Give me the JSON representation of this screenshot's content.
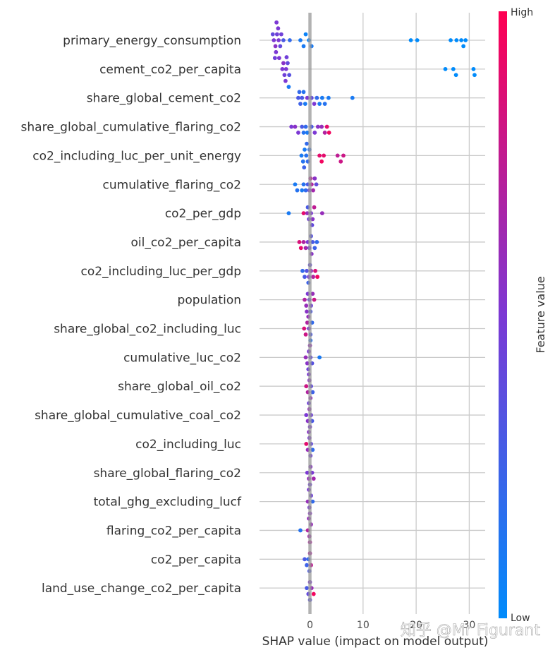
{
  "chart_data": {
    "type": "scatter",
    "subtype": "shap-beeswarm",
    "title": "",
    "xlabel": "SHAP value (impact on model output)",
    "ylabel": "",
    "xlim": [
      -9.5,
      33
    ],
    "xticks": [
      0,
      10,
      20,
      30
    ],
    "grid": true,
    "colorbar": {
      "title": "Feature value",
      "high_label": "High",
      "low_label": "Low",
      "low_color": "#008bfb",
      "mid_color": "#7c38d4",
      "high_color": "#ff0052"
    },
    "features": [
      {
        "name": "primary_energy_consumption",
        "points": [
          [
            -6.8,
            0.5
          ],
          [
            -6.5,
            0.55
          ],
          [
            -6.2,
            0.45
          ],
          [
            -5.9,
            0.5
          ],
          [
            -7.0,
            0.4
          ],
          [
            -6.4,
            0.5
          ],
          [
            -5.6,
            0.4
          ],
          [
            -6.0,
            0.5
          ],
          [
            -6.6,
            0.45
          ],
          [
            -5.8,
            0.5
          ],
          [
            -5.4,
            0.45
          ],
          [
            -6.3,
            0.5
          ],
          [
            -5.0,
            0.3
          ],
          [
            -3.8,
            0.2
          ],
          [
            -1.8,
            0.1
          ],
          [
            -1.2,
            0.1
          ],
          [
            -0.2,
            0.05
          ],
          [
            -0.8,
            0.05
          ],
          [
            0.3,
            0.1
          ],
          [
            19.0,
            0.0
          ],
          [
            20.2,
            0.0
          ],
          [
            26.5,
            0.0
          ],
          [
            27.6,
            0.0
          ],
          [
            28.5,
            0.0
          ],
          [
            28.9,
            0.0
          ],
          [
            29.3,
            0.0
          ]
        ]
      },
      {
        "name": "cement_co2_per_capita",
        "points": [
          [
            -5.2,
            0.5
          ],
          [
            -4.8,
            0.45
          ],
          [
            -4.5,
            0.5
          ],
          [
            -4.2,
            0.4
          ],
          [
            -5.0,
            0.55
          ],
          [
            -4.6,
            0.5
          ],
          [
            -3.9,
            0.35
          ],
          [
            -4.4,
            0.45
          ],
          [
            -4.0,
            0.1
          ],
          [
            25.5,
            0.0
          ],
          [
            27.0,
            0.0
          ],
          [
            27.5,
            0.0
          ],
          [
            30.8,
            0.0
          ],
          [
            31.0,
            0.0
          ]
        ]
      },
      {
        "name": "share_global_cement_co2",
        "points": [
          [
            -2.2,
            0.3
          ],
          [
            -1.8,
            0.25
          ],
          [
            -1.5,
            0.3
          ],
          [
            -2.0,
            0.2
          ],
          [
            -1.2,
            0.15
          ],
          [
            -0.9,
            0.1
          ],
          [
            -0.5,
            0.5
          ],
          [
            0.3,
            0.4
          ],
          [
            0.8,
            0.5
          ],
          [
            1.3,
            0.2
          ],
          [
            1.8,
            0.1
          ],
          [
            2.3,
            0.1
          ],
          [
            2.8,
            0.15
          ],
          [
            3.5,
            0.1
          ],
          [
            8.0,
            0.1
          ]
        ]
      },
      {
        "name": "share_global_cumulative_flaring_co2",
        "points": [
          [
            -3.5,
            0.5
          ],
          [
            -2.8,
            0.55
          ],
          [
            -2.2,
            0.5
          ],
          [
            -1.5,
            0.3
          ],
          [
            -0.8,
            0.2
          ],
          [
            -1.2,
            0.15
          ],
          [
            0.3,
            0.3
          ],
          [
            0.9,
            0.5
          ],
          [
            1.5,
            0.55
          ],
          [
            2.2,
            0.6
          ],
          [
            2.8,
            0.7
          ],
          [
            3.2,
            0.9
          ],
          [
            3.6,
            0.95
          ],
          [
            -0.5,
            0.1
          ]
        ]
      },
      {
        "name": "co2_including_luc_per_unit_energy",
        "points": [
          [
            -1.6,
            0.1
          ],
          [
            -1.3,
            0.15
          ],
          [
            -1.0,
            0.1
          ],
          [
            -0.7,
            0.15
          ],
          [
            -0.4,
            0.2
          ],
          [
            -0.1,
            0.15
          ],
          [
            -1.1,
            0.25
          ],
          [
            -0.6,
            0.2
          ],
          [
            1.8,
            0.9
          ],
          [
            2.2,
            0.95
          ],
          [
            2.6,
            0.9
          ],
          [
            5.2,
            0.75
          ],
          [
            5.8,
            0.8
          ],
          [
            6.3,
            0.8
          ]
        ]
      },
      {
        "name": "cumulative_flaring_co2",
        "points": [
          [
            -2.8,
            0.1
          ],
          [
            -2.4,
            0.15
          ],
          [
            -1.2,
            0.15
          ],
          [
            -0.8,
            0.2
          ],
          [
            -0.4,
            0.3
          ],
          [
            -0.1,
            0.45
          ],
          [
            0.3,
            0.7
          ],
          [
            0.6,
            0.65
          ],
          [
            0.9,
            0.55
          ],
          [
            1.2,
            0.4
          ],
          [
            0.1,
            0.75
          ],
          [
            -1.5,
            0.1
          ]
        ]
      },
      {
        "name": "co2_per_gdp",
        "points": [
          [
            -4.0,
            0.1
          ],
          [
            -1.2,
            0.9
          ],
          [
            -0.5,
            0.6
          ],
          [
            -0.2,
            0.45
          ],
          [
            0.2,
            0.5
          ],
          [
            0.5,
            0.55
          ],
          [
            0.8,
            0.75
          ],
          [
            0.4,
            0.4
          ],
          [
            2.3,
            0.6
          ],
          [
            -0.4,
            0.3
          ]
        ]
      },
      {
        "name": "oil_co2_per_capita",
        "points": [
          [
            -2.0,
            0.85
          ],
          [
            -1.7,
            0.9
          ],
          [
            -1.2,
            0.7
          ],
          [
            -0.8,
            0.65
          ],
          [
            -0.4,
            0.5
          ],
          [
            -0.1,
            0.45
          ],
          [
            0.2,
            0.35
          ],
          [
            0.5,
            0.3
          ],
          [
            0.9,
            0.25
          ],
          [
            1.3,
            0.2
          ],
          [
            0.3,
            0.55
          ]
        ]
      },
      {
        "name": "co2_including_luc_per_gdp",
        "points": [
          [
            -1.4,
            0.2
          ],
          [
            -1.0,
            0.3
          ],
          [
            -0.6,
            0.35
          ],
          [
            -0.2,
            0.5
          ],
          [
            0.2,
            0.6
          ],
          [
            0.6,
            0.7
          ],
          [
            1.0,
            0.85
          ],
          [
            1.4,
            0.95
          ],
          [
            0.0,
            0.4
          ],
          [
            -0.3,
            0.25
          ]
        ]
      },
      {
        "name": "population",
        "points": [
          [
            -1.0,
            0.7
          ],
          [
            -0.7,
            0.6
          ],
          [
            -0.4,
            0.5
          ],
          [
            -0.1,
            0.4
          ],
          [
            0.2,
            0.45
          ],
          [
            0.5,
            0.6
          ],
          [
            0.8,
            0.8
          ],
          [
            0.1,
            0.3
          ],
          [
            -0.6,
            0.55
          ]
        ]
      },
      {
        "name": "share_global_co2_including_luc",
        "points": [
          [
            -1.1,
            0.85
          ],
          [
            -0.8,
            0.8
          ],
          [
            -0.5,
            0.7
          ],
          [
            -0.2,
            0.5
          ],
          [
            0.1,
            0.3
          ],
          [
            0.4,
            0.2
          ],
          [
            0.1,
            0.15
          ],
          [
            -0.3,
            0.6
          ]
        ]
      },
      {
        "name": "cumulative_luc_co2",
        "points": [
          [
            -0.8,
            0.6
          ],
          [
            -0.5,
            0.55
          ],
          [
            -0.2,
            0.5
          ],
          [
            0.1,
            0.4
          ],
          [
            0.4,
            0.35
          ],
          [
            1.8,
            0.1
          ],
          [
            -0.3,
            0.45
          ],
          [
            0.0,
            0.6
          ]
        ]
      },
      {
        "name": "share_global_oil_co2",
        "points": [
          [
            -0.7,
            0.8
          ],
          [
            -0.4,
            0.7
          ],
          [
            -0.1,
            0.55
          ],
          [
            0.2,
            0.4
          ],
          [
            0.5,
            0.25
          ],
          [
            0.1,
            0.6
          ],
          [
            -0.2,
            0.5
          ]
        ]
      },
      {
        "name": "share_global_cumulative_coal_co2",
        "points": [
          [
            -0.7,
            0.5
          ],
          [
            -0.4,
            0.55
          ],
          [
            -0.1,
            0.6
          ],
          [
            0.2,
            0.45
          ],
          [
            0.4,
            0.3
          ],
          [
            0.0,
            0.5
          ],
          [
            -0.2,
            0.45
          ]
        ]
      },
      {
        "name": "co2_including_luc",
        "points": [
          [
            -0.7,
            0.9
          ],
          [
            -0.4,
            0.6
          ],
          [
            -0.1,
            0.5
          ],
          [
            0.2,
            0.4
          ],
          [
            0.5,
            0.2
          ],
          [
            0.1,
            0.45
          ],
          [
            -0.2,
            0.55
          ]
        ]
      },
      {
        "name": "share_global_flaring_co2",
        "points": [
          [
            -0.5,
            0.5
          ],
          [
            -0.2,
            0.6
          ],
          [
            0.1,
            0.55
          ],
          [
            0.4,
            0.5
          ],
          [
            0.7,
            0.65
          ],
          [
            0.0,
            0.45
          ]
        ]
      },
      {
        "name": "total_ghg_excluding_lucf",
        "points": [
          [
            -0.4,
            0.6
          ],
          [
            -0.1,
            0.5
          ],
          [
            0.2,
            0.45
          ],
          [
            0.5,
            0.2
          ],
          [
            0.0,
            0.55
          ],
          [
            -0.2,
            0.5
          ]
        ]
      },
      {
        "name": "flaring_co2_per_capita",
        "points": [
          [
            -1.8,
            0.15
          ],
          [
            -0.4,
            0.7
          ],
          [
            -0.1,
            0.65
          ],
          [
            0.2,
            0.6
          ],
          [
            0.0,
            0.7
          ],
          [
            -0.2,
            0.6
          ]
        ]
      },
      {
        "name": "co2_per_capita",
        "points": [
          [
            -1.0,
            0.3
          ],
          [
            -0.6,
            0.25
          ],
          [
            -0.3,
            0.2
          ],
          [
            0.0,
            0.7
          ],
          [
            0.2,
            0.75
          ],
          [
            -0.1,
            0.3
          ]
        ]
      },
      {
        "name": "land_use_change_co2_per_capita",
        "points": [
          [
            -0.6,
            0.3
          ],
          [
            -0.3,
            0.4
          ],
          [
            0.0,
            0.5
          ],
          [
            0.3,
            0.6
          ],
          [
            0.7,
            0.95
          ],
          [
            0.0,
            0.35
          ]
        ]
      }
    ]
  },
  "watermark": "知乎 @Mr Figurant"
}
